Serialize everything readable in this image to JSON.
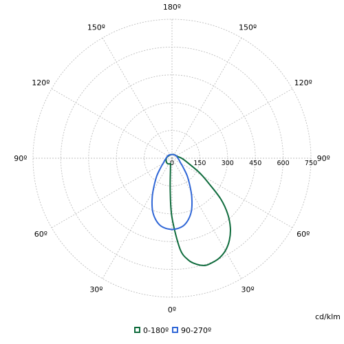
{
  "chart_data": {
    "type": "polar",
    "unit": "cd/klm",
    "r_ticks": [
      0,
      150,
      300,
      450,
      600,
      750
    ],
    "r_max": 750,
    "angle_tick_labels": [
      {
        "angle": 0,
        "label": "0º"
      },
      {
        "angle": 30,
        "label": "30º"
      },
      {
        "angle": 60,
        "label": "60º"
      },
      {
        "angle": 90,
        "label": "90º"
      },
      {
        "angle": 120,
        "label": "120º"
      },
      {
        "angle": 150,
        "label": "150º"
      },
      {
        "angle": 180,
        "label": "180º"
      },
      {
        "angle": -150,
        "label": "150º"
      },
      {
        "angle": -120,
        "label": "120º"
      },
      {
        "angle": -90,
        "label": "90º"
      },
      {
        "angle": -60,
        "label": "60º"
      },
      {
        "angle": -30,
        "label": "30º"
      }
    ],
    "legend_position": "bottom-center",
    "series": [
      {
        "name": "0-180º",
        "color": "#0e6b3c",
        "points": [
          {
            "angle": -15,
            "r": 30
          },
          {
            "angle": -8,
            "r": 60
          },
          {
            "angle": -3,
            "r": 180
          },
          {
            "angle": 0,
            "r": 320
          },
          {
            "angle": 5,
            "r": 490
          },
          {
            "angle": 9,
            "r": 555
          },
          {
            "angle": 13,
            "r": 587
          },
          {
            "angle": 17,
            "r": 605
          },
          {
            "angle": 20,
            "r": 605
          },
          {
            "angle": 25,
            "r": 597
          },
          {
            "angle": 30,
            "r": 576
          },
          {
            "angle": 35,
            "r": 540
          },
          {
            "angle": 40,
            "r": 490
          },
          {
            "angle": 45,
            "r": 425
          },
          {
            "angle": 50,
            "r": 345
          },
          {
            "angle": 55,
            "r": 250
          },
          {
            "angle": 62,
            "r": 170
          },
          {
            "angle": 75,
            "r": 85
          },
          {
            "angle": 90,
            "r": 52
          },
          {
            "angle": 110,
            "r": 30
          },
          {
            "angle": 135,
            "r": 24
          },
          {
            "angle": 160,
            "r": 22
          },
          {
            "angle": 180,
            "r": 20
          },
          {
            "angle": -160,
            "r": 20
          },
          {
            "angle": -130,
            "r": 22
          },
          {
            "angle": -100,
            "r": 28
          },
          {
            "angle": -80,
            "r": 32
          },
          {
            "angle": -60,
            "r": 36
          },
          {
            "angle": -40,
            "r": 38
          },
          {
            "angle": -25,
            "r": 34
          },
          {
            "angle": -15,
            "r": 30
          }
        ]
      },
      {
        "name": "90-270º",
        "color": "#2f66d6",
        "points": [
          {
            "angle": 0,
            "r": 385
          },
          {
            "angle": 5,
            "r": 380
          },
          {
            "angle": 10,
            "r": 368
          },
          {
            "angle": 15,
            "r": 342
          },
          {
            "angle": 20,
            "r": 305
          },
          {
            "angle": 25,
            "r": 255
          },
          {
            "angle": 30,
            "r": 205
          },
          {
            "angle": 40,
            "r": 130
          },
          {
            "angle": 50,
            "r": 80
          },
          {
            "angle": 60,
            "r": 55
          },
          {
            "angle": 75,
            "r": 40
          },
          {
            "angle": 90,
            "r": 32
          },
          {
            "angle": 120,
            "r": 26
          },
          {
            "angle": 150,
            "r": 22
          },
          {
            "angle": 180,
            "r": 20
          },
          {
            "angle": -150,
            "r": 22
          },
          {
            "angle": -120,
            "r": 26
          },
          {
            "angle": -90,
            "r": 32
          },
          {
            "angle": -75,
            "r": 40
          },
          {
            "angle": -60,
            "r": 55
          },
          {
            "angle": -50,
            "r": 80
          },
          {
            "angle": -40,
            "r": 130
          },
          {
            "angle": -30,
            "r": 205
          },
          {
            "angle": -25,
            "r": 255
          },
          {
            "angle": -20,
            "r": 305
          },
          {
            "angle": -15,
            "r": 342
          },
          {
            "angle": -10,
            "r": 368
          },
          {
            "angle": -5,
            "r": 380
          },
          {
            "angle": 0,
            "r": 385
          }
        ]
      }
    ]
  }
}
